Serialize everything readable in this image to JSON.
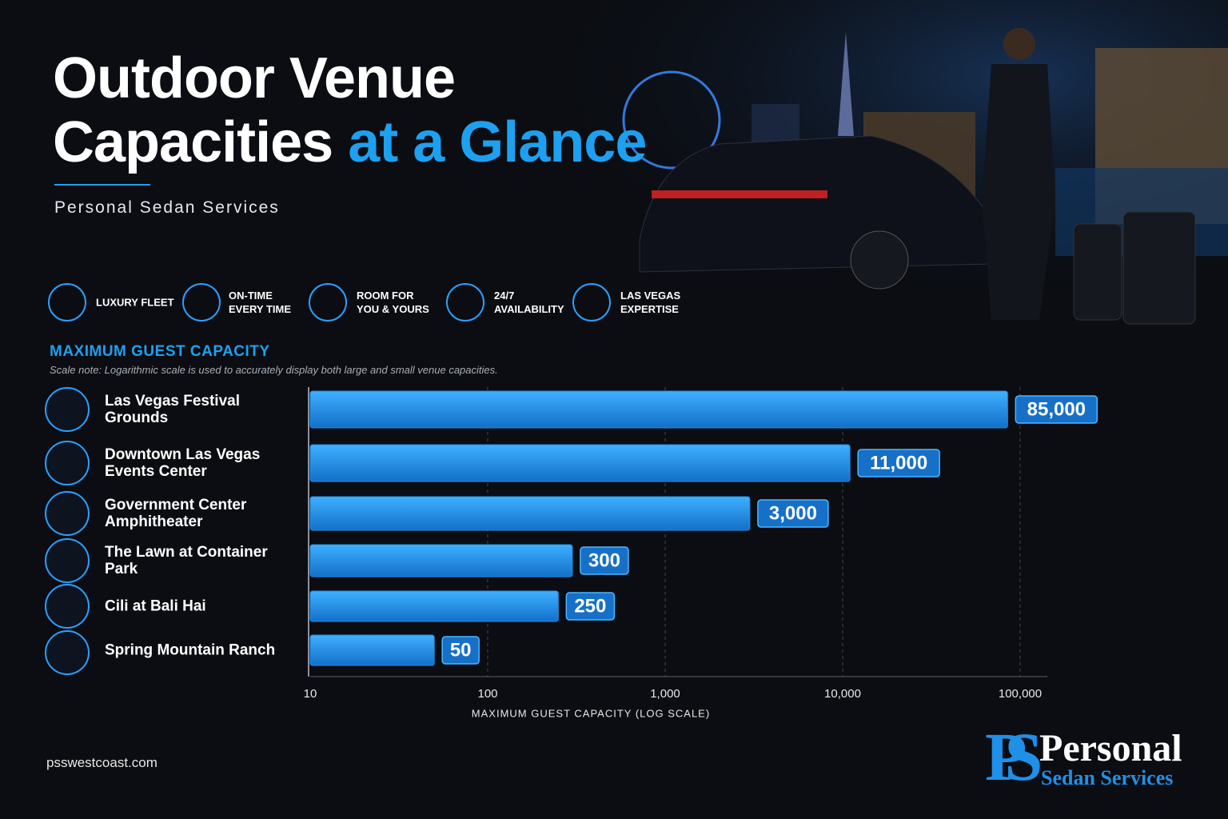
{
  "header": {
    "title": "Outdoor Venue Capacities",
    "title_highlight": "at a Glance",
    "subtitle": "Personal Sedan Services"
  },
  "features": [
    "LUXURY FLEET",
    "ON-TIME EVERY TIME",
    "ROOM FOR YOU & YOURS",
    "24/7 AVAILABILITY",
    "LAS VEGAS EXPERTISE"
  ],
  "chart_data": {
    "type": "bar",
    "orientation": "horizontal",
    "title": "MAXIMUM GUEST CAPACITY",
    "subtitle": "Scale note: Logarithmic scale is used to accurately display both large and small venue capacities.",
    "categories": [
      "Las Vegas Festival Grounds",
      "Downtown Las Vegas Events Center",
      "Government Center Amphitheater",
      "The Lawn at Container Park",
      "Cili at Bali Hai",
      "Spring Mountain Ranch"
    ],
    "values": [
      85000,
      11000,
      3000,
      300,
      250,
      50
    ],
    "value_labels": [
      "85,000",
      "11,000",
      "3,000",
      "300",
      "250",
      "50"
    ],
    "color": "#1e90e8",
    "x_label": "MAXIMUM GUEST CAPACITY (LOG SCALE)",
    "log_scale": true,
    "xlim": [
      10,
      100000
    ],
    "xticks": [
      10,
      100,
      {
        "value": 1000,
        "label": "1,000"
      },
      {
        "value": 10000,
        "label": "10,000"
      },
      {
        "value": 100000,
        "label": "100,000"
      }
    ],
    "grid": true
  },
  "footer": {
    "website": "psswestcoast.com",
    "logo_monogram": "PS",
    "logo_name": "Personal",
    "logo_tagline": "Sedan Services"
  }
}
